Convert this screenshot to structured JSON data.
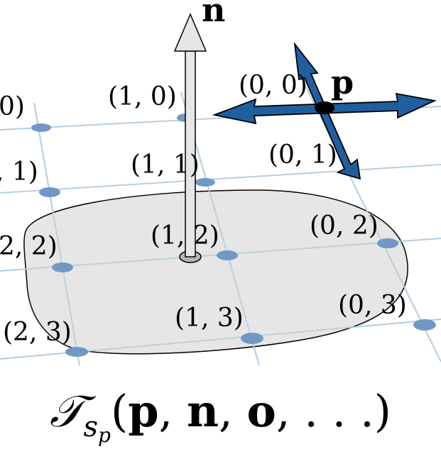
{
  "normal_label": "n",
  "point_label": "p",
  "grid_labels": [
    "0)",
    ", 1)",
    "2, 2)",
    "(2, 3)",
    "(1, 0)",
    "(1, 1)",
    "(1, 2)",
    "(1, 3)",
    "(0, 0)",
    "(0, 1)",
    "(0, 2)",
    "(0, 3)"
  ],
  "caption": {
    "operator": "𝒯",
    "subscript": "s",
    "subsubscript": "p",
    "open": "(",
    "arg_p": "p",
    "arg_n": "n",
    "arg_o": "o",
    "rest": ", . . .)",
    "sep1": ", ",
    "sep2": ", "
  },
  "colors": {
    "grid_line": "#b7cfe0",
    "grid_node": "#6f98c6",
    "patch_fill": "#e6e6e6",
    "arrow_blue": "#1f5fa0",
    "normal_fill": "#e6e6e6"
  }
}
